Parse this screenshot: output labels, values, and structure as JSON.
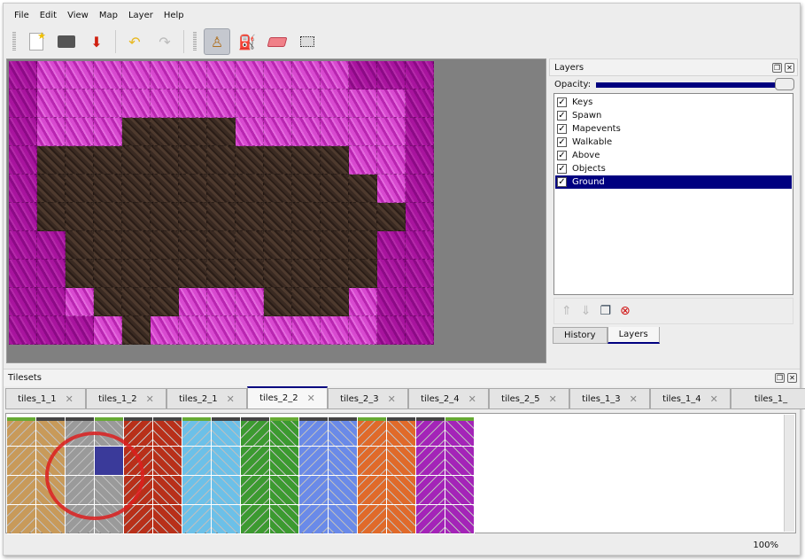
{
  "menu": [
    "File",
    "Edit",
    "View",
    "Map",
    "Layer",
    "Help"
  ],
  "toolbar": {
    "icons": [
      "new-file-icon",
      "open-icon",
      "save-icon",
      "undo-icon",
      "redo-icon",
      "stamp-brush-icon",
      "bucket-fill-icon",
      "eraser-icon",
      "rectangle-select-icon"
    ],
    "active": "stamp-brush-icon"
  },
  "map": {
    "rows": [
      "QPPPPPPPPPPPQQQ",
      "QPPPPPPPPPPPPPQ",
      "QPPPDDDDPPPPPPQ",
      "QDDDDDDDDDDDPPQ",
      "QDDDDDDDDDDDDPQ",
      "QDDDDDDDDDDDDDQ",
      "QQDDDDDDDDDDDQQ",
      "QQDDDDDDDDDDDQQ",
      "QQPDDDPPPDDDPQQ",
      "QQQPDPPPPPPPPQQ"
    ]
  },
  "layers_panel": {
    "title": "Layers",
    "opacity_label": "Opacity:",
    "opacity": 1.0,
    "layers": [
      {
        "name": "Keys",
        "visible": true
      },
      {
        "name": "Spawn",
        "visible": true
      },
      {
        "name": "Mapevents",
        "visible": true
      },
      {
        "name": "Walkable",
        "visible": true
      },
      {
        "name": "Above",
        "visible": true
      },
      {
        "name": "Objects",
        "visible": true
      },
      {
        "name": "Ground",
        "visible": true,
        "selected": true
      }
    ],
    "tabs": [
      "History",
      "Layers"
    ],
    "active_tab": "Layers"
  },
  "tilesets": {
    "title": "Tilesets",
    "tabs": [
      "tiles_1_1",
      "tiles_1_2",
      "tiles_2_1",
      "tiles_2_2",
      "tiles_2_3",
      "tiles_2_4",
      "tiles_2_5",
      "tiles_1_3",
      "tiles_1_4",
      "tiles_1_"
    ],
    "active_tab": "tiles_2_2",
    "columns": [
      "#c89a5a",
      "#c89a5a",
      "#9a9a9a",
      "#9a9a9a",
      "#b8301a",
      "#b8301a",
      "#6cc0e8",
      "#6cc0e8",
      "#3c9a30",
      "#3c9a30",
      "#6a8ae8",
      "#6a8ae8",
      "#e06a2a",
      "#e06a2a",
      "#a424b8",
      "#a424b8"
    ]
  },
  "status": {
    "zoom": "100%"
  }
}
